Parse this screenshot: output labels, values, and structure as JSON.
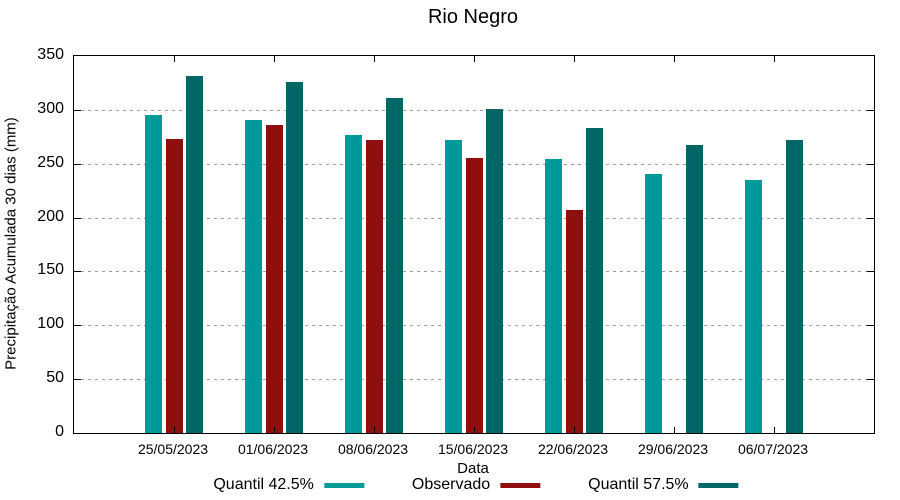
{
  "title": "Rio Negro",
  "axes": {
    "ylabel": "Precipitação Acumulada 30 dias (mm)",
    "xlabel": "Data",
    "y_ticks": [
      0,
      50,
      100,
      150,
      200,
      250,
      300,
      350
    ],
    "ylim": [
      0,
      350
    ]
  },
  "legend": [
    {
      "label": "Quantil 42.5%",
      "color": "#009999"
    },
    {
      "label": "Observado",
      "color": "#8F0E0E"
    },
    {
      "label": "Quantil 57.5%",
      "color": "#006666"
    }
  ],
  "chart_data": {
    "type": "bar",
    "title": "Rio Negro",
    "xlabel": "Data",
    "ylabel": "Precipitação Acumulada 30 dias (mm)",
    "ylim": [
      0,
      350
    ],
    "y_tick_step": 50,
    "grid": "horizontal dotted gridlines at every 50 mm",
    "legend_position": "bottom",
    "categories": [
      "25/05/2023",
      "01/06/2023",
      "08/06/2023",
      "15/06/2023",
      "22/06/2023",
      "29/06/2023",
      "06/07/2023"
    ],
    "series": [
      {
        "name": "Quantil 42.5%",
        "color": "#009999",
        "values": [
          295,
          291,
          277,
          272,
          254,
          240,
          235
        ]
      },
      {
        "name": "Observado",
        "color": "#8F0E0E",
        "values": [
          273,
          286,
          272,
          255,
          207,
          null,
          null
        ]
      },
      {
        "name": "Quantil 57.5%",
        "color": "#006666",
        "values": [
          331,
          326,
          311,
          301,
          283,
          267,
          272
        ]
      }
    ]
  }
}
